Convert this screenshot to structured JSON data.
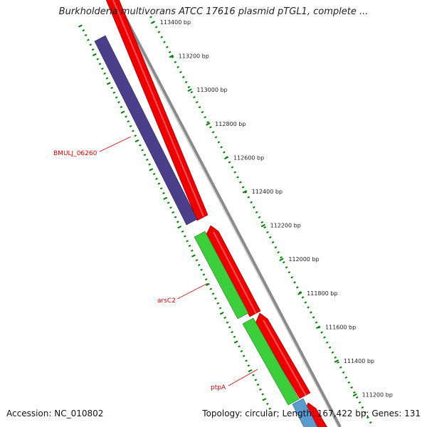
{
  "title": "Burkholderia multivorans ATCC 17616 plasmid pTGL1, complete ...",
  "accession": "Accession: NC_010802",
  "summary": "Topology: circular; Length: 167,422 bp; Genes: 131",
  "colors": {
    "backbone": "#808080",
    "forward_cds": "#ff0000",
    "reverse_cds_1": "#483d8b",
    "reverse_cds_2": "#32cd32",
    "reverse_cds_3": "#4682b4",
    "ticks": "#008000",
    "label": "#dd0000"
  },
  "ticks": [
    {
      "label": "113400 bp"
    },
    {
      "label": "113200 bp"
    },
    {
      "label": "113000 bp"
    },
    {
      "label": "112800 bp"
    },
    {
      "label": "112600 bp"
    },
    {
      "label": "112400 bp"
    },
    {
      "label": "112200 bp"
    },
    {
      "label": "112000 bp"
    },
    {
      "label": "111800 bp"
    },
    {
      "label": "111600 bp"
    },
    {
      "label": "111400 bp"
    },
    {
      "label": "111200 bp"
    }
  ],
  "gene_labels": [
    {
      "text": "BMULJ_06260"
    },
    {
      "text": "arsC2"
    },
    {
      "text": "ptpA"
    }
  ]
}
